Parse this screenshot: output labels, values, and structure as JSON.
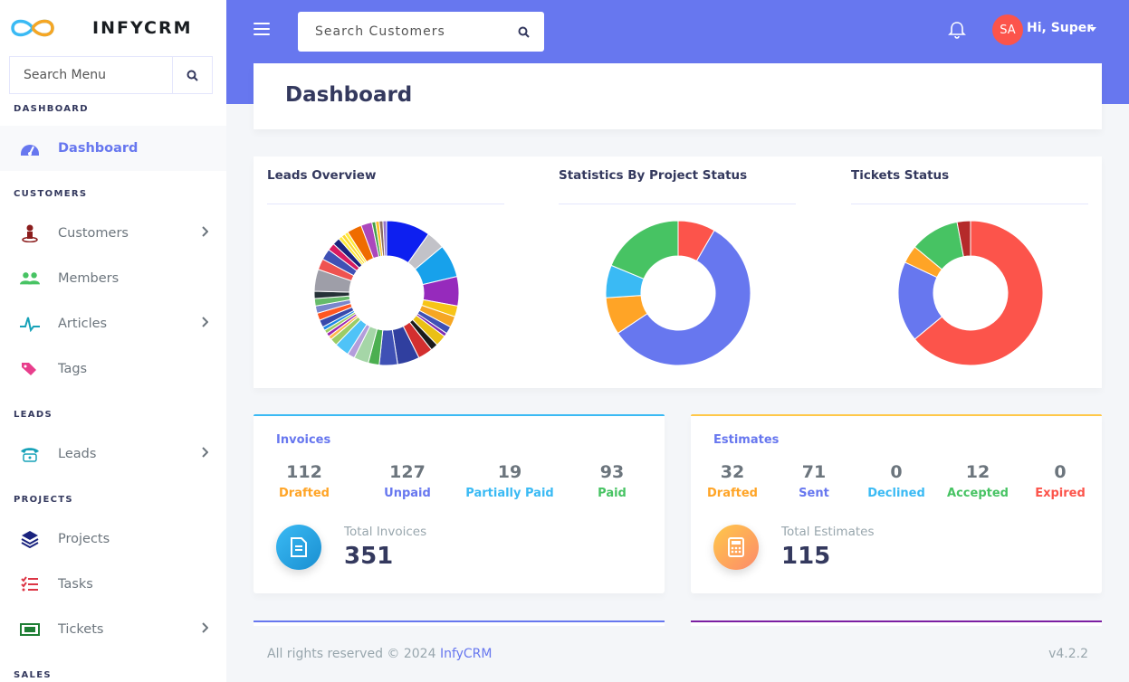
{
  "brand": {
    "name": "INFYCRM"
  },
  "sidebar": {
    "search_placeholder": "Search Menu",
    "sections": {
      "dashboard": "DASHBOARD",
      "customers": "CUSTOMERS",
      "leads": "LEADS",
      "projects": "PROJECTS",
      "sales": "SALES"
    },
    "items": {
      "dashboard": "Dashboard",
      "customers": "Customers",
      "members": "Members",
      "articles": "Articles",
      "tags": "Tags",
      "leads": "Leads",
      "projects": "Projects",
      "tasks": "Tasks",
      "tickets": "Tickets"
    }
  },
  "header": {
    "search_placeholder": "Search Customers",
    "avatar_initials": "SA",
    "user_greeting": "Hi, Super"
  },
  "page": {
    "title": "Dashboard"
  },
  "charts": {
    "leads_title": "Leads Overview",
    "project_title": "Statistics By Project Status",
    "tickets_title": "Tickets Status"
  },
  "chart_data": [
    {
      "type": "pie",
      "variant": "doughnut",
      "title": "Leads Overview",
      "values": [
        12,
        5,
        9,
        8,
        3,
        3,
        2,
        1,
        3,
        2,
        4,
        6,
        5,
        3,
        4,
        2,
        4,
        2,
        1,
        1,
        1,
        1,
        2,
        2,
        2,
        2,
        2,
        6,
        3,
        3,
        2,
        2,
        1,
        1,
        1,
        4,
        3,
        1,
        1,
        1,
        1
      ],
      "colors": [
        "#0d1ff0",
        "#c2c2c8",
        "#17a1eb",
        "#962abc",
        "#f7c417",
        "#f6a623",
        "#3f51b5",
        "#7d2bb3",
        "#eac015",
        "#1b1b1b",
        "#d32f2f",
        "#303f9f",
        "#3f51b5",
        "#4caf50",
        "#a5d6a7",
        "#b39ddb",
        "#4fc3f7",
        "#9ccc65",
        "#ffb74d",
        "#9c27b0",
        "#9ccc65",
        "#1e88e5",
        "#3949ab",
        "#ff5722",
        "#7986cb",
        "#66bb6a",
        "#263238",
        "#9e9ea8",
        "#ef5350",
        "#3f51b5",
        "#d81b60",
        "#1a237e",
        "#ffeb3b",
        "#fdd835",
        "#ffeb3b",
        "#ef6c00",
        "#ab47bc",
        "#43a047",
        "#fbc02d",
        "#8d6e63",
        "#9575cd"
      ]
    },
    {
      "type": "pie",
      "variant": "doughnut",
      "title": "Statistics By Project Status",
      "values": [
        8,
        55,
        8,
        7,
        18
      ],
      "colors": [
        "#fc544b",
        "#6777ef",
        "#ffa426",
        "#3abaf4",
        "#47c363"
      ]
    },
    {
      "type": "pie",
      "variant": "doughnut",
      "title": "Tickets Status",
      "values": [
        64,
        18,
        4,
        11,
        3
      ],
      "colors": [
        "#fc544b",
        "#6777ef",
        "#ffa426",
        "#47c363",
        "#b52a2a"
      ]
    }
  ],
  "invoices": {
    "title": "Invoices",
    "stats": [
      {
        "value": "112",
        "label": "Drafted",
        "color": "#ffa426"
      },
      {
        "value": "127",
        "label": "Unpaid",
        "color": "#6777ef"
      },
      {
        "value": "19",
        "label": "Partially Paid",
        "color": "#3abaf4"
      },
      {
        "value": "93",
        "label": "Paid",
        "color": "#47c363"
      }
    ],
    "total_label": "Total Invoices",
    "total_value": "351"
  },
  "estimates": {
    "title": "Estimates",
    "stats": [
      {
        "value": "32",
        "label": "Drafted",
        "color": "#ffa426"
      },
      {
        "value": "71",
        "label": "Sent",
        "color": "#6777ef"
      },
      {
        "value": "0",
        "label": "Declined",
        "color": "#3abaf4"
      },
      {
        "value": "12",
        "label": "Accepted",
        "color": "#47c363"
      },
      {
        "value": "0",
        "label": "Expired",
        "color": "#fc544b"
      }
    ],
    "total_label": "Total Estimates",
    "total_value": "115"
  },
  "footer": {
    "copyright": "All rights reserved © 2024",
    "brand_link": "InfyCRM",
    "version": "v4.2.2"
  },
  "colors": {
    "accent": "#6777ef",
    "invoice_border": "#3abaf4",
    "estimate_border": "#ffc849"
  }
}
